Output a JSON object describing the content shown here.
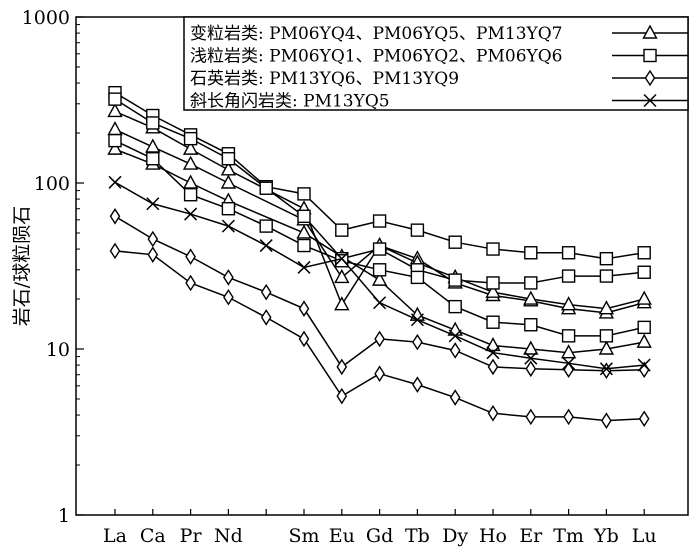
{
  "chart_data": {
    "type": "line",
    "scale": "log",
    "ylim": [
      1,
      1000
    ],
    "yticks": [
      "1",
      "10",
      "100",
      "1000"
    ],
    "ylabel": "岩石/球粒陨石",
    "categories": [
      "La",
      "Ca",
      "Pr",
      "Nd",
      "",
      "Sm",
      "Eu",
      "Gd",
      "Tb",
      "Dy",
      "Ho",
      "Er",
      "Tm",
      "Yb",
      "Lu"
    ],
    "legend": {
      "position": "top-right",
      "entries": [
        {
          "text": "变粒岩类: PM06YQ4、PM06YQ5、PM13YQ7",
          "marker": "triangle"
        },
        {
          "text": "浅粒岩类: PM06YQ1、PM06YQ2、PM06YQ6",
          "marker": "square"
        },
        {
          "text": "石英岩类: PM13YQ6、PM13YQ9",
          "marker": "diamond"
        },
        {
          "text": "斜长角闪岩类: PM13YQ5",
          "marker": "x"
        }
      ]
    },
    "series": [
      {
        "marker": "triangle",
        "values": [
          270,
          215,
          160,
          120,
          null,
          70,
          18.5,
          42,
          35,
          25,
          21,
          19.5,
          17.5,
          16.5,
          19
        ]
      },
      {
        "marker": "triangle",
        "values": [
          210,
          165,
          130,
          100,
          null,
          60,
          27,
          42,
          33,
          27,
          22,
          20,
          18.5,
          17.5,
          20
        ]
      },
      {
        "marker": "triangle",
        "values": [
          160,
          130,
          100,
          78,
          null,
          50,
          36,
          26,
          16,
          13,
          10.5,
          10,
          9.5,
          10,
          11
        ]
      },
      {
        "marker": "square",
        "values": [
          350,
          255,
          195,
          150,
          95,
          86,
          52,
          59,
          52,
          44,
          40,
          38,
          38,
          35,
          38
        ]
      },
      {
        "marker": "square",
        "values": [
          320,
          230,
          185,
          140,
          93,
          63,
          35,
          40,
          30,
          26,
          25,
          25,
          27.5,
          27.5,
          29
        ]
      },
      {
        "marker": "square",
        "values": [
          180,
          140,
          85,
          70,
          55,
          42,
          34,
          30,
          27,
          18,
          14.5,
          14,
          12,
          12,
          13.5
        ]
      },
      {
        "marker": "diamond",
        "values": [
          63,
          46,
          36,
          27,
          22,
          17.5,
          7.8,
          11.5,
          11,
          9.8,
          7.8,
          7.6,
          7.5,
          7.4,
          7.5
        ]
      },
      {
        "marker": "diamond",
        "values": [
          39,
          37,
          25,
          20.5,
          15.5,
          11.5,
          5.2,
          7.1,
          6.1,
          5.1,
          4.1,
          3.9,
          3.9,
          3.7,
          3.8
        ]
      },
      {
        "marker": "x",
        "values": [
          101,
          75,
          65,
          55,
          42,
          31,
          35,
          19,
          15,
          12,
          9.5,
          8.8,
          8.2,
          7.6,
          8
        ]
      }
    ]
  }
}
